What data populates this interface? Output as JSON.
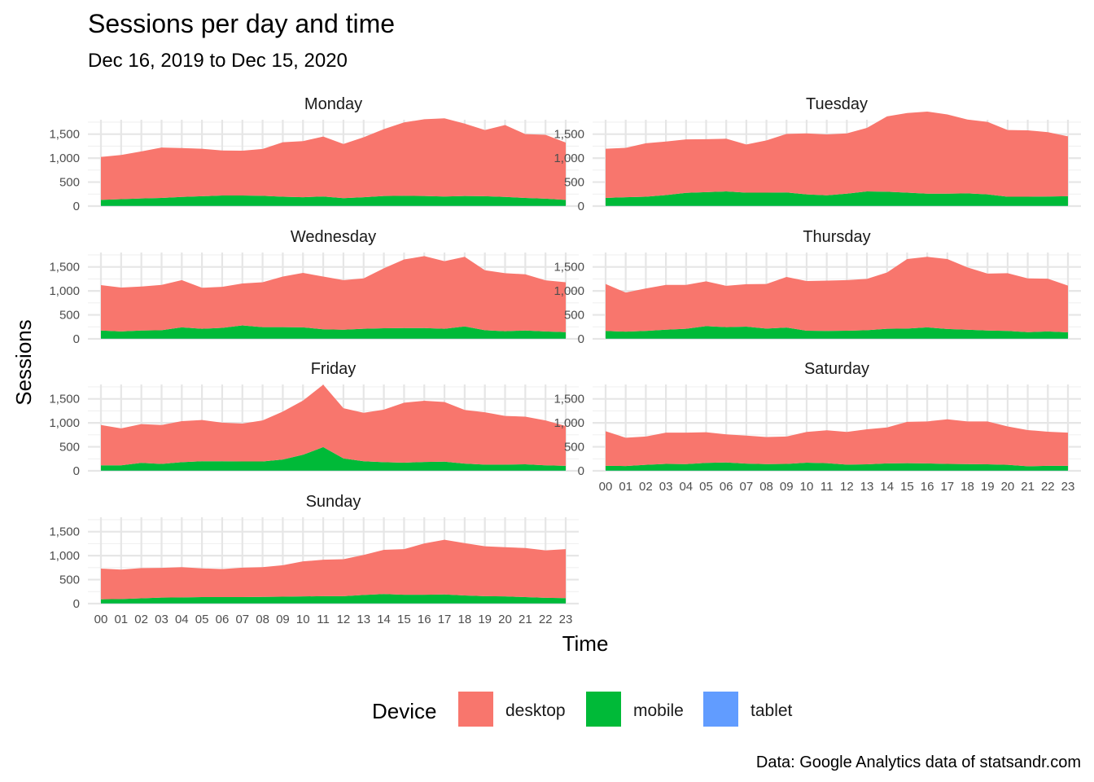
{
  "chart_data": {
    "type": "area",
    "stacked": true,
    "title": "Sessions per day and time",
    "subtitle": "Dec 16, 2019 to Dec 15, 2020",
    "xlabel": "Time",
    "ylabel": "Sessions",
    "caption": "Data: Google Analytics data of statsandr.com",
    "x": [
      "00",
      "01",
      "02",
      "03",
      "04",
      "05",
      "06",
      "07",
      "08",
      "09",
      "10",
      "11",
      "12",
      "13",
      "14",
      "15",
      "16",
      "17",
      "18",
      "19",
      "20",
      "21",
      "22",
      "23"
    ],
    "y_ticks": [
      0,
      500,
      1000,
      1500
    ],
    "y_tick_labels": [
      "0",
      "500",
      "1,000",
      "1,500"
    ],
    "ylim": [
      0,
      1800
    ],
    "grid": true,
    "legend": {
      "title": "Device",
      "position": "bottom",
      "entries": [
        {
          "name": "desktop",
          "color": "#F8766D"
        },
        {
          "name": "mobile",
          "color": "#00BA38"
        },
        {
          "name": "tablet",
          "color": "#619CFF"
        }
      ]
    },
    "panels": [
      {
        "name": "Monday",
        "series": [
          {
            "name": "tablet",
            "values": [
              5,
              5,
              5,
              5,
              5,
              5,
              5,
              5,
              5,
              5,
              5,
              5,
              5,
              5,
              5,
              5,
              5,
              5,
              5,
              5,
              5,
              5,
              5,
              5
            ]
          },
          {
            "name": "mobile",
            "values": [
              125,
              140,
              155,
              165,
              185,
              200,
              215,
              215,
              210,
              190,
              180,
              195,
              160,
              180,
              205,
              210,
              205,
              195,
              205,
              200,
              185,
              165,
              150,
              125
            ]
          },
          {
            "name": "desktop",
            "values": [
              895,
              920,
              980,
              1050,
              1020,
              990,
              940,
              935,
              975,
              1135,
              1170,
              1250,
              1130,
              1250,
              1395,
              1530,
              1600,
              1630,
              1510,
              1380,
              1500,
              1330,
              1330,
              1195
            ]
          }
        ]
      },
      {
        "name": "Tuesday",
        "series": [
          {
            "name": "tablet",
            "values": [
              5,
              5,
              5,
              5,
              5,
              5,
              5,
              5,
              5,
              5,
              5,
              5,
              5,
              5,
              5,
              5,
              5,
              5,
              5,
              5,
              5,
              5,
              5,
              5
            ]
          },
          {
            "name": "mobile",
            "values": [
              165,
              180,
              190,
              225,
              270,
              285,
              300,
              275,
              275,
              280,
              240,
              220,
              255,
              300,
              295,
              275,
              255,
              255,
              260,
              240,
              190,
              190,
              195,
              200
            ]
          },
          {
            "name": "desktop",
            "values": [
              1025,
              1030,
              1115,
              1115,
              1115,
              1105,
              1100,
              1005,
              1090,
              1220,
              1270,
              1270,
              1255,
              1325,
              1570,
              1660,
              1710,
              1650,
              1540,
              1510,
              1390,
              1385,
              1340,
              1250
            ]
          }
        ]
      },
      {
        "name": "Wednesday",
        "series": [
          {
            "name": "tablet",
            "values": [
              5,
              5,
              5,
              5,
              5,
              5,
              5,
              5,
              5,
              5,
              5,
              5,
              5,
              5,
              5,
              5,
              5,
              5,
              5,
              5,
              5,
              5,
              5,
              5
            ]
          },
          {
            "name": "mobile",
            "values": [
              170,
              150,
              170,
              175,
              235,
              205,
              225,
              275,
              240,
              240,
              235,
              195,
              185,
              205,
              215,
              220,
              220,
              205,
              255,
              175,
              155,
              170,
              150,
              135
            ]
          },
          {
            "name": "desktop",
            "values": [
              945,
              915,
              915,
              945,
              985,
              855,
              855,
              875,
              935,
              1055,
              1135,
              1100,
              1035,
              1050,
              1250,
              1430,
              1500,
              1410,
              1450,
              1250,
              1210,
              1170,
              1065,
              1040
            ]
          }
        ]
      },
      {
        "name": "Thursday",
        "series": [
          {
            "name": "tablet",
            "values": [
              5,
              5,
              5,
              5,
              5,
              5,
              5,
              5,
              5,
              5,
              5,
              5,
              5,
              5,
              5,
              5,
              5,
              5,
              5,
              5,
              5,
              5,
              5,
              5
            ]
          },
          {
            "name": "mobile",
            "values": [
              160,
              145,
              160,
              185,
              205,
              260,
              240,
              250,
              210,
              230,
              165,
              160,
              165,
              175,
              205,
              210,
              235,
              200,
              185,
              170,
              160,
              135,
              150,
              130
            ]
          },
          {
            "name": "desktop",
            "values": [
              980,
              815,
              885,
              935,
              915,
              935,
              860,
              885,
              930,
              1055,
              1035,
              1050,
              1055,
              1070,
              1175,
              1450,
              1470,
              1460,
              1300,
              1185,
              1205,
              1120,
              1100,
              975
            ]
          }
        ]
      },
      {
        "name": "Friday",
        "series": [
          {
            "name": "tablet",
            "values": [
              5,
              5,
              5,
              5,
              5,
              5,
              5,
              5,
              5,
              5,
              5,
              5,
              5,
              5,
              5,
              5,
              5,
              5,
              5,
              5,
              5,
              5,
              5,
              5
            ]
          },
          {
            "name": "mobile",
            "values": [
              110,
              110,
              160,
              140,
              175,
              195,
              195,
              190,
              190,
              230,
              330,
              490,
              255,
              195,
              175,
              165,
              180,
              185,
              145,
              125,
              125,
              130,
              110,
              100
            ]
          },
          {
            "name": "desktop",
            "values": [
              840,
              770,
              810,
              810,
              855,
              860,
              805,
              790,
              855,
              1000,
              1130,
              1300,
              1045,
              1010,
              1095,
              1250,
              1275,
              1245,
              1120,
              1090,
              1015,
              995,
              935,
              830
            ]
          }
        ]
      },
      {
        "name": "Saturday",
        "series": [
          {
            "name": "tablet",
            "values": [
              5,
              5,
              5,
              5,
              5,
              5,
              5,
              5,
              5,
              5,
              5,
              5,
              5,
              5,
              5,
              5,
              5,
              5,
              5,
              5,
              5,
              5,
              5,
              5
            ]
          },
          {
            "name": "mobile",
            "values": [
              100,
              95,
              120,
              140,
              135,
              160,
              170,
              145,
              135,
              140,
              165,
              155,
              125,
              130,
              150,
              155,
              150,
              140,
              135,
              130,
              120,
              90,
              100,
              100
            ]
          },
          {
            "name": "desktop",
            "values": [
              720,
              590,
              590,
              650,
              655,
              640,
              585,
              585,
              565,
              570,
              640,
              685,
              680,
              730,
              750,
              860,
              875,
              930,
              890,
              895,
              800,
              755,
              710,
              690
            ]
          }
        ]
      },
      {
        "name": "Sunday",
        "series": [
          {
            "name": "tablet",
            "values": [
              5,
              5,
              5,
              5,
              5,
              5,
              5,
              5,
              5,
              5,
              5,
              5,
              5,
              5,
              5,
              5,
              5,
              5,
              5,
              5,
              5,
              5,
              5,
              5
            ]
          },
          {
            "name": "mobile",
            "values": [
              85,
              90,
              105,
              120,
              125,
              130,
              130,
              130,
              135,
              140,
              145,
              150,
              150,
              175,
              195,
              180,
              180,
              185,
              165,
              150,
              145,
              130,
              115,
              110
            ]
          },
          {
            "name": "desktop",
            "values": [
              640,
              615,
              630,
              620,
              630,
              600,
              585,
              615,
              620,
              655,
              730,
              760,
              770,
              835,
              920,
              950,
              1070,
              1140,
              1090,
              1040,
              1025,
              1025,
              990,
              1020
            ]
          }
        ]
      }
    ]
  }
}
